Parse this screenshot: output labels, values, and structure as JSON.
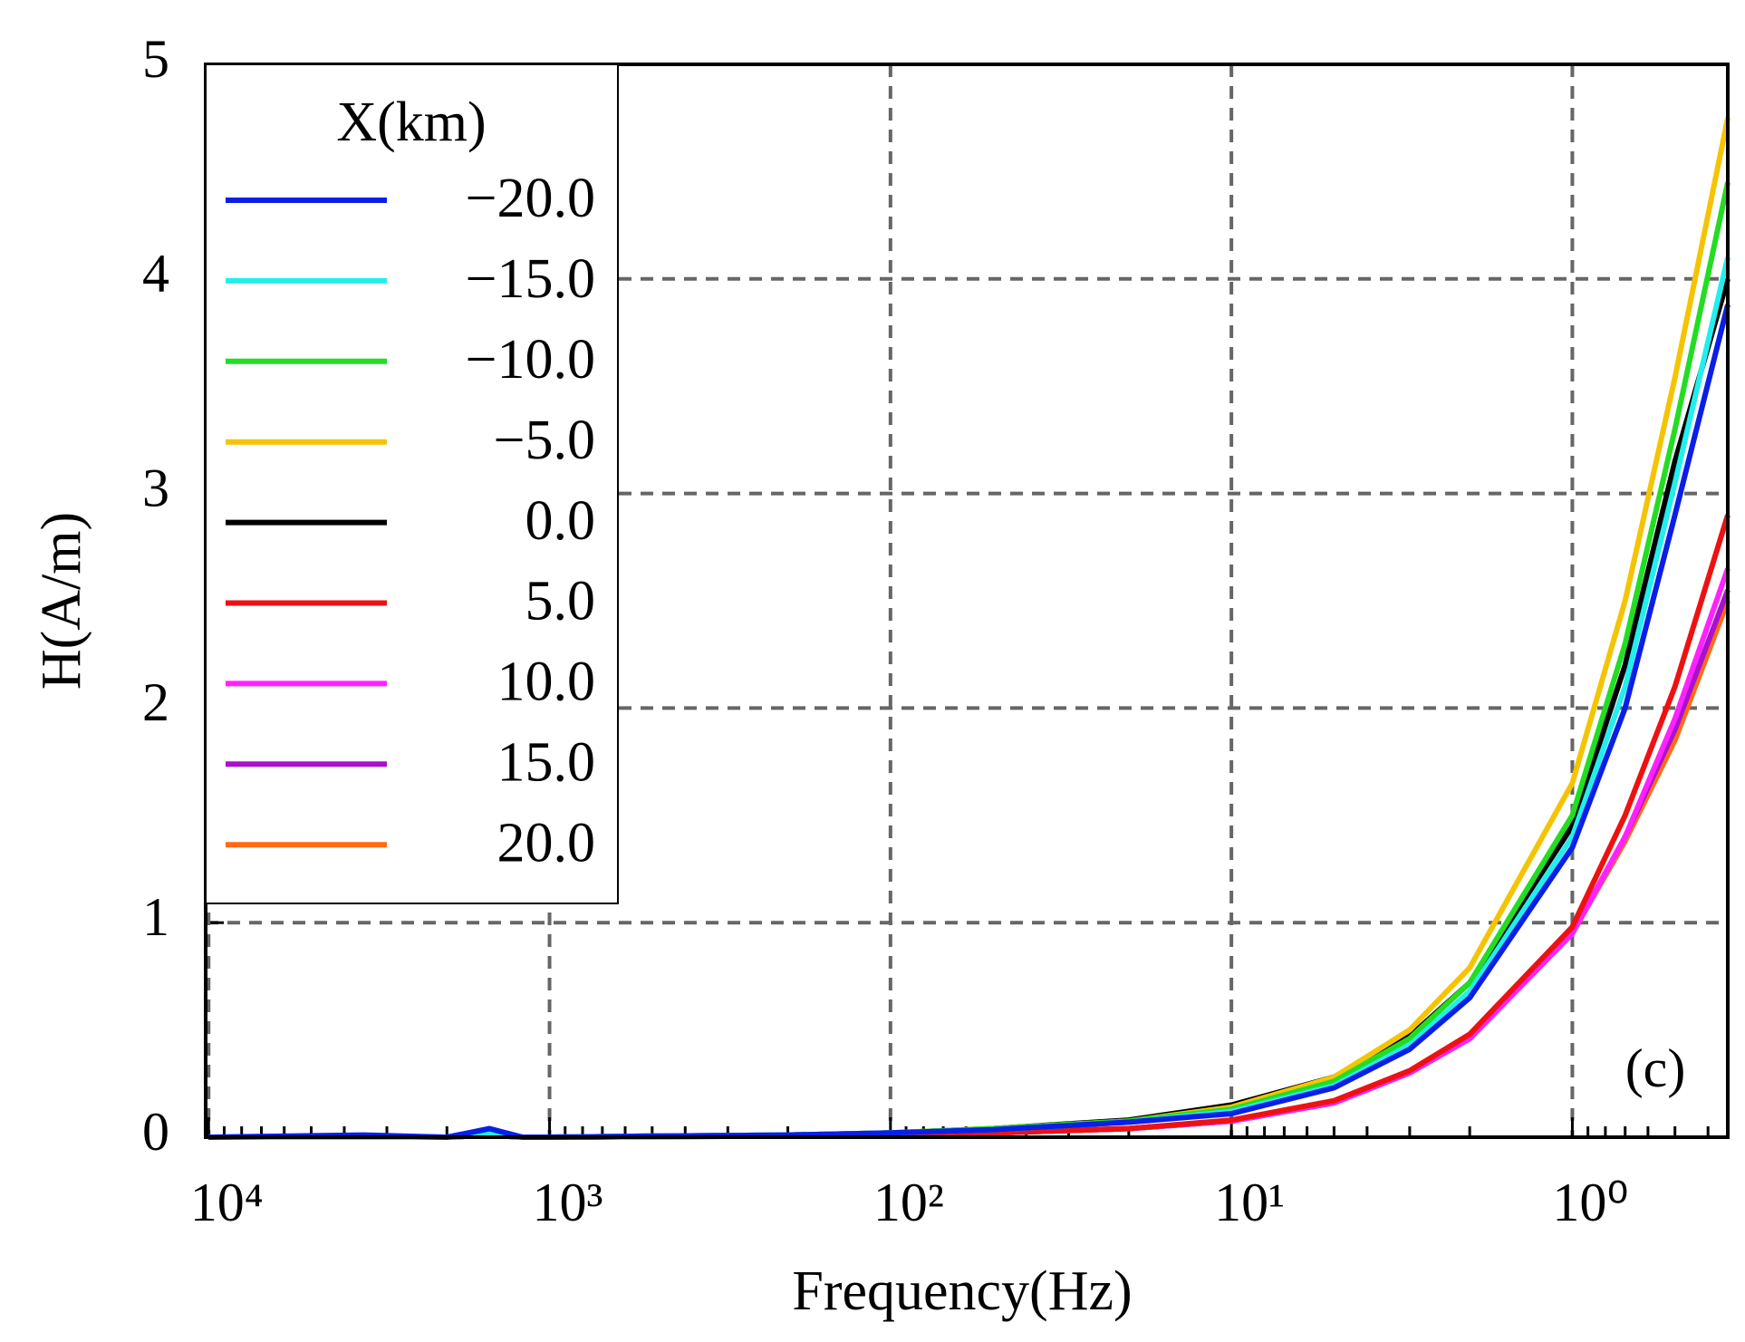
{
  "chart_data": {
    "type": "line",
    "xlabel": "Frequency(Hz)",
    "ylabel": "H(A/m)",
    "annotation": "(c)",
    "legend_title": "X(km)",
    "legend": "upper left",
    "xscale": "log",
    "grid": true,
    "x": [
      10000,
      3500,
      2000,
      1500,
      1200,
      1000,
      500,
      200,
      100,
      50,
      20,
      10,
      5,
      3,
      2,
      1,
      0.7,
      0.5,
      0.35
    ],
    "series": [
      {
        "name": "−20.0",
        "color": "#0a1ee6",
        "values": [
          0,
          0.01,
          0,
          0.04,
          0,
          0,
          0.005,
          0.01,
          0.02,
          0.035,
          0.07,
          0.11,
          0.23,
          0.41,
          0.65,
          1.35,
          2.0,
          2.9,
          3.88
        ]
      },
      {
        "name": "−15.0",
        "color": "#22eeee",
        "values": [
          0,
          0,
          0,
          0.02,
          0,
          0,
          0.005,
          0.01,
          0.02,
          0.035,
          0.07,
          0.12,
          0.24,
          0.43,
          0.68,
          1.4,
          2.1,
          3.05,
          4.1
        ]
      },
      {
        "name": "−10.0",
        "color": "#22dd22",
        "values": [
          0,
          0,
          0,
          0.02,
          0,
          0,
          0.005,
          0.01,
          0.02,
          0.04,
          0.075,
          0.13,
          0.26,
          0.46,
          0.72,
          1.5,
          2.3,
          3.3,
          4.45
        ]
      },
      {
        "name": "−5.0",
        "color": "#f5c400",
        "values": [
          0,
          0,
          0,
          0.02,
          0,
          0,
          0.005,
          0.01,
          0.02,
          0.04,
          0.075,
          0.14,
          0.28,
          0.5,
          0.79,
          1.65,
          2.5,
          3.54,
          4.75
        ]
      },
      {
        "name": "0.0",
        "color": "#000000",
        "values": [
          0,
          0,
          0,
          0.02,
          0,
          0,
          0.005,
          0.01,
          0.02,
          0.04,
          0.08,
          0.15,
          0.28,
          0.47,
          0.72,
          1.45,
          2.2,
          3.15,
          4.0
        ]
      },
      {
        "name": "5.0",
        "color": "#ee1111",
        "values": [
          0,
          0,
          0,
          0.01,
          0,
          0,
          0.003,
          0.005,
          0.01,
          0.02,
          0.04,
          0.08,
          0.17,
          0.31,
          0.48,
          0.98,
          1.5,
          2.1,
          2.9
        ]
      },
      {
        "name": "10.0",
        "color": "#ff22ff",
        "values": [
          0,
          0,
          0,
          0.01,
          0,
          0,
          0.003,
          0.005,
          0.01,
          0.02,
          0.04,
          0.075,
          0.16,
          0.3,
          0.46,
          0.95,
          1.4,
          1.95,
          2.65
        ]
      },
      {
        "name": "15.0",
        "color": "#aa11cc",
        "values": [
          0,
          0,
          0,
          0.01,
          0,
          0,
          0.003,
          0.005,
          0.01,
          0.02,
          0.04,
          0.075,
          0.16,
          0.3,
          0.46,
          0.95,
          1.4,
          1.9,
          2.55
        ]
      },
      {
        "name": "20.0",
        "color": "#ff6a14",
        "values": [
          0,
          0,
          0,
          0.01,
          0,
          0,
          0.003,
          0.005,
          0.01,
          0.02,
          0.04,
          0.075,
          0.16,
          0.3,
          0.46,
          0.95,
          1.38,
          1.85,
          2.5
        ]
      }
    ],
    "xlim": [
      10200,
      0.35
    ],
    "ylim": [
      0,
      5
    ],
    "xticks": [
      {
        "value": 10000,
        "label": "10⁴"
      },
      {
        "value": 1000,
        "label": "10³"
      },
      {
        "value": 100,
        "label": "10²"
      },
      {
        "value": 10,
        "label": "10¹"
      },
      {
        "value": 1,
        "label": "10⁰"
      }
    ],
    "xminorticks": [
      9000,
      8000,
      7000,
      6000,
      5000,
      4000,
      3000,
      2000,
      900,
      800,
      700,
      600,
      500,
      400,
      300,
      200,
      90,
      80,
      70,
      60,
      50,
      40,
      30,
      20,
      9,
      8,
      7,
      6,
      5,
      4,
      3,
      2,
      0.9,
      0.8,
      0.7,
      0.6,
      0.5,
      0.4
    ],
    "yticks": [
      0,
      1,
      2,
      3,
      4,
      5
    ]
  }
}
